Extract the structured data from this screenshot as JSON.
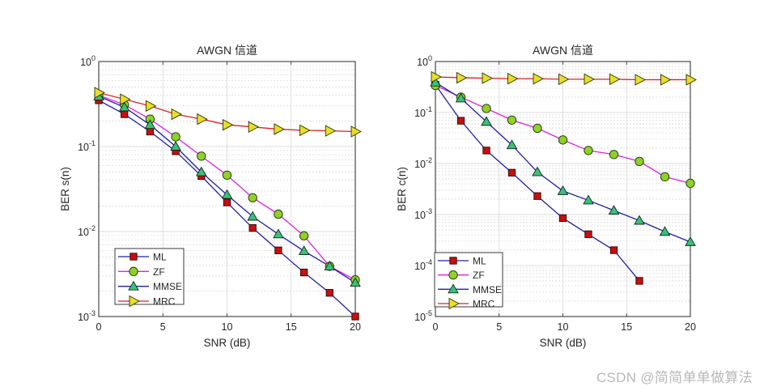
{
  "watermark": "CSDN @简简单单做算法",
  "chart_data": [
    {
      "type": "line",
      "title": "AWGN 信道",
      "xlabel": "SNR (dB)",
      "ylabel": "BER s(n)",
      "yscale": "log",
      "xlim": [
        0,
        20
      ],
      "ylim": [
        0.001,
        1
      ],
      "xticks": [
        0,
        5,
        10,
        15,
        20
      ],
      "xtick_labels": [
        "0",
        "5",
        "10",
        "15",
        "20"
      ],
      "yticks_exp": [
        0,
        -1,
        -2,
        -3
      ],
      "grid": true,
      "minor_grid": true,
      "legend_position": "bottom-left",
      "x": [
        0,
        2,
        4,
        6,
        8,
        10,
        12,
        14,
        16,
        18,
        20
      ],
      "series": [
        {
          "name": "ML",
          "marker": "square",
          "line_color": "#1f1fa8",
          "marker_color": "#c41010",
          "values": [
            0.35,
            0.24,
            0.15,
            0.088,
            0.045,
            0.022,
            0.011,
            0.006,
            0.0033,
            0.0019,
            0.001
          ]
        },
        {
          "name": "ZF",
          "marker": "circle",
          "line_color": "#e020e0",
          "marker_color": "#8fd12a",
          "values": [
            0.4,
            0.31,
            0.21,
            0.13,
            0.077,
            0.046,
            0.025,
            0.016,
            0.0089,
            0.0039,
            0.0027
          ]
        },
        {
          "name": "MMSE",
          "marker": "triangle-up",
          "line_color": "#1f1fa8",
          "marker_color": "#3cbf7a",
          "values": [
            0.39,
            0.29,
            0.18,
            0.1,
            0.05,
            0.027,
            0.015,
            0.0093,
            0.0059,
            0.0039,
            0.0025
          ]
        },
        {
          "name": "MRC",
          "marker": "triangle-right",
          "line_color": "#e02020",
          "marker_color": "#e6df2a",
          "values": [
            0.43,
            0.36,
            0.3,
            0.24,
            0.21,
            0.18,
            0.17,
            0.16,
            0.155,
            0.153,
            0.15
          ]
        }
      ]
    },
    {
      "type": "line",
      "title": "AWGN 信道",
      "xlabel": "SNR (dB)",
      "ylabel": "BER c(n)",
      "yscale": "log",
      "xlim": [
        0,
        20
      ],
      "ylim": [
        1e-05,
        1
      ],
      "xticks": [
        0,
        5,
        10,
        15,
        20
      ],
      "xtick_labels": [
        "0",
        "5",
        "10",
        "15",
        "20"
      ],
      "yticks_exp": [
        0,
        -1,
        -2,
        -3,
        -4,
        -5
      ],
      "grid": true,
      "minor_grid": true,
      "legend_position": "bottom-left",
      "x": [
        0,
        2,
        4,
        6,
        8,
        10,
        12,
        14,
        16,
        18,
        20
      ],
      "series": [
        {
          "name": "ML",
          "marker": "square",
          "line_color": "#1f1fa8",
          "marker_color": "#c41010",
          "values": [
            0.35,
            0.069,
            0.018,
            0.0066,
            0.0023,
            0.00085,
            0.00041,
            0.0002,
            5e-05,
            null,
            null
          ]
        },
        {
          "name": "ZF",
          "marker": "circle",
          "line_color": "#e020e0",
          "marker_color": "#8fd12a",
          "values": [
            0.34,
            0.2,
            0.12,
            0.071,
            0.049,
            0.029,
            0.018,
            0.015,
            0.011,
            0.0055,
            0.0041
          ]
        },
        {
          "name": "MMSE",
          "marker": "triangle-up",
          "line_color": "#1f1fa8",
          "marker_color": "#3cbf7a",
          "values": [
            0.39,
            0.19,
            0.066,
            0.023,
            0.0068,
            0.0029,
            0.0019,
            0.0012,
            0.00076,
            0.00046,
            0.00029
          ]
        },
        {
          "name": "MRC",
          "marker": "triangle-right",
          "line_color": "#e02020",
          "marker_color": "#e6df2a",
          "values": [
            0.5,
            0.48,
            0.47,
            0.46,
            0.46,
            0.45,
            0.45,
            0.45,
            0.44,
            0.44,
            0.44
          ]
        }
      ]
    }
  ]
}
